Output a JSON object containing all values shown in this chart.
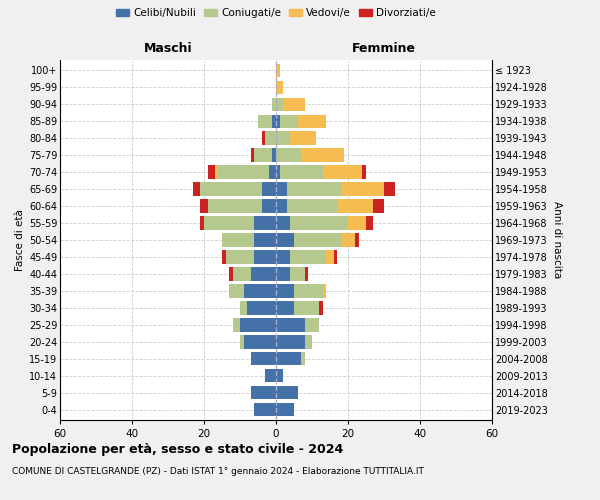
{
  "age_groups": [
    "0-4",
    "5-9",
    "10-14",
    "15-19",
    "20-24",
    "25-29",
    "30-34",
    "35-39",
    "40-44",
    "45-49",
    "50-54",
    "55-59",
    "60-64",
    "65-69",
    "70-74",
    "75-79",
    "80-84",
    "85-89",
    "90-94",
    "95-99",
    "100+"
  ],
  "birth_years": [
    "2019-2023",
    "2014-2018",
    "2009-2013",
    "2004-2008",
    "1999-2003",
    "1994-1998",
    "1989-1993",
    "1984-1988",
    "1979-1983",
    "1974-1978",
    "1969-1973",
    "1964-1968",
    "1959-1963",
    "1954-1958",
    "1949-1953",
    "1944-1948",
    "1939-1943",
    "1934-1938",
    "1929-1933",
    "1924-1928",
    "≤ 1923"
  ],
  "colors": {
    "celibi": "#4472a8",
    "coniugati": "#b5c98e",
    "vedovi": "#f5bc52",
    "divorziati": "#cc2222"
  },
  "males": {
    "celibi": [
      6,
      7,
      3,
      7,
      9,
      10,
      8,
      9,
      7,
      6,
      6,
      6,
      4,
      4,
      2,
      1,
      0,
      1,
      0,
      0,
      0
    ],
    "coniugati": [
      0,
      0,
      0,
      0,
      1,
      2,
      2,
      4,
      5,
      8,
      9,
      14,
      15,
      17,
      14,
      5,
      3,
      4,
      1,
      0,
      0
    ],
    "vedovi": [
      0,
      0,
      0,
      0,
      0,
      0,
      0,
      0,
      0,
      0,
      0,
      0,
      0,
      0,
      1,
      0,
      0,
      0,
      0,
      0,
      0
    ],
    "divorziati": [
      0,
      0,
      0,
      0,
      0,
      0,
      0,
      0,
      1,
      1,
      0,
      1,
      2,
      2,
      2,
      1,
      1,
      0,
      0,
      0,
      0
    ]
  },
  "females": {
    "celibi": [
      5,
      6,
      2,
      7,
      8,
      8,
      5,
      5,
      4,
      4,
      5,
      4,
      3,
      3,
      1,
      0,
      0,
      1,
      0,
      0,
      0
    ],
    "coniugati": [
      0,
      0,
      0,
      1,
      2,
      4,
      7,
      8,
      4,
      10,
      13,
      16,
      14,
      15,
      12,
      7,
      4,
      5,
      2,
      0,
      0
    ],
    "vedovi": [
      0,
      0,
      0,
      0,
      0,
      0,
      0,
      1,
      0,
      2,
      4,
      5,
      10,
      12,
      11,
      12,
      7,
      8,
      6,
      2,
      1
    ],
    "divorziati": [
      0,
      0,
      0,
      0,
      0,
      0,
      1,
      0,
      1,
      1,
      1,
      2,
      3,
      3,
      1,
      0,
      0,
      0,
      0,
      0,
      0
    ]
  },
  "title": "Popolazione per età, sesso e stato civile - 2024",
  "subtitle": "COMUNE DI CASTELGRANDE (PZ) - Dati ISTAT 1° gennaio 2024 - Elaborazione TUTTITALIA.IT",
  "xlabel_left": "Maschi",
  "xlabel_right": "Femmine",
  "ylabel_left": "Fasce di età",
  "ylabel_right": "Anni di nascita",
  "xlim": 60,
  "legend_labels": [
    "Celibi/Nubili",
    "Coniugati/e",
    "Vedovi/e",
    "Divorziati/e"
  ],
  "bg_color": "#f0f0f0",
  "plot_bg": "#ffffff"
}
